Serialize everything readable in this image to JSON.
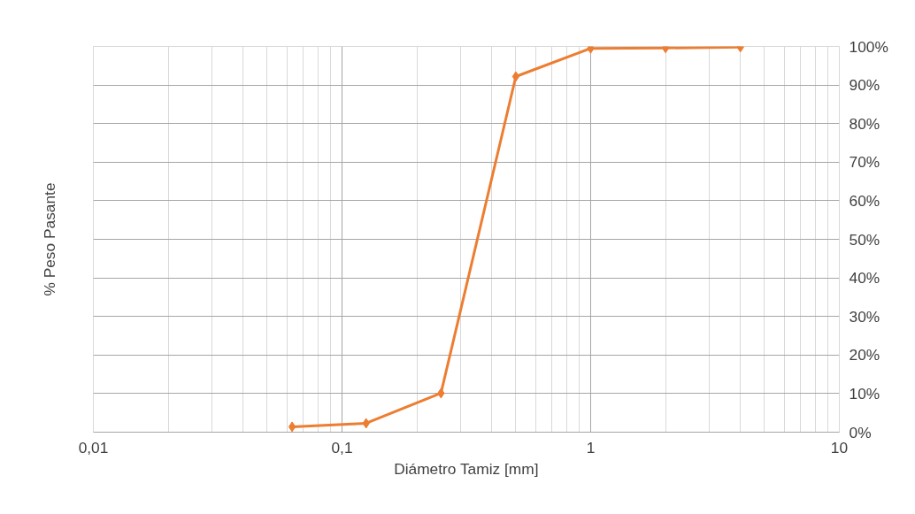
{
  "chart_data": {
    "type": "line",
    "xlabel": "Diámetro Tamiz [mm]",
    "ylabel": "% Peso Pasante",
    "x": [
      0.063,
      0.125,
      0.25,
      0.5,
      1,
      2,
      4
    ],
    "series": [
      {
        "color": "#ed7d31",
        "values": [
          1.4,
          2.3,
          10.1,
          92.2,
          99.5,
          99.6,
          99.8
        ]
      }
    ],
    "log": "x",
    "xlim": [
      0.01,
      10
    ],
    "xticks": [
      {
        "value": 0.01,
        "label": "0,01"
      },
      {
        "value": 0.1,
        "label": "0,1"
      },
      {
        "value": 1,
        "label": "1"
      },
      {
        "value": 10,
        "label": "10"
      }
    ],
    "ylim": [
      0,
      100
    ],
    "yticks": [
      {
        "value": 0,
        "label": "0%"
      },
      {
        "value": 10,
        "label": "10%"
      },
      {
        "value": 20,
        "label": "20%"
      },
      {
        "value": 30,
        "label": "30%"
      },
      {
        "value": 40,
        "label": "40%"
      },
      {
        "value": 50,
        "label": "50%"
      },
      {
        "value": 60,
        "label": "60%"
      },
      {
        "value": 70,
        "label": "70%"
      },
      {
        "value": 80,
        "label": "80%"
      },
      {
        "value": 90,
        "label": "90%"
      },
      {
        "value": 100,
        "label": "100%"
      }
    ],
    "grid": true,
    "marker": "diamond",
    "line_style": "solid"
  }
}
